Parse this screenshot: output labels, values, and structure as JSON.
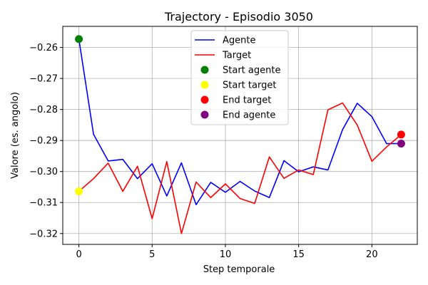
{
  "chart_data": {
    "type": "line",
    "title": "Trajectory - Episodio 3050",
    "xlabel": "Step temporale",
    "ylabel": "Valore (es. angolo)",
    "xlim": [
      -1.1,
      23.1
    ],
    "ylim": [
      -0.3235,
      -0.2532
    ],
    "x_ticks": [
      0,
      5,
      10,
      15,
      20
    ],
    "y_ticks": [
      -0.32,
      -0.31,
      -0.3,
      -0.29,
      -0.28,
      -0.27,
      -0.26
    ],
    "y_tick_labels": [
      "−0.32",
      "−0.31",
      "−0.30",
      "−0.29",
      "−0.28",
      "−0.27",
      "−0.26"
    ],
    "grid": true,
    "legend_position": "top-center",
    "x": [
      0,
      1,
      2,
      3,
      4,
      5,
      6,
      7,
      8,
      9,
      10,
      11,
      12,
      13,
      14,
      15,
      16,
      17,
      18,
      19,
      20,
      21,
      22
    ],
    "series": [
      {
        "name": "Agente",
        "color": "#0000ff",
        "values": [
          -0.2573,
          -0.288,
          -0.2966,
          -0.2961,
          -0.3023,
          -0.2975,
          -0.3079,
          -0.2972,
          -0.3107,
          -0.3035,
          -0.3067,
          -0.3032,
          -0.3063,
          -0.3084,
          -0.2965,
          -0.3001,
          -0.2985,
          -0.2995,
          -0.2865,
          -0.278,
          -0.2823,
          -0.291,
          -0.291
        ]
      },
      {
        "name": "Target",
        "color": "#ff0000",
        "values": [
          -0.3064,
          -0.3023,
          -0.2973,
          -0.3064,
          -0.2983,
          -0.3152,
          -0.2968,
          -0.32,
          -0.3034,
          -0.3084,
          -0.304,
          -0.3087,
          -0.3103,
          -0.2953,
          -0.3022,
          -0.2995,
          -0.301,
          -0.2801,
          -0.2779,
          -0.285,
          -0.2967,
          -0.2921,
          -0.2881
        ]
      }
    ],
    "markers": [
      {
        "name": "Start agente",
        "color": "#008000",
        "x": 0,
        "y": -0.2573
      },
      {
        "name": "Start target",
        "color": "#ffff00",
        "x": 0,
        "y": -0.3064
      },
      {
        "name": "End target",
        "color": "#ff0000",
        "x": 22,
        "y": -0.2881
      },
      {
        "name": "End agente",
        "color": "#800080",
        "x": 22,
        "y": -0.291
      }
    ]
  }
}
